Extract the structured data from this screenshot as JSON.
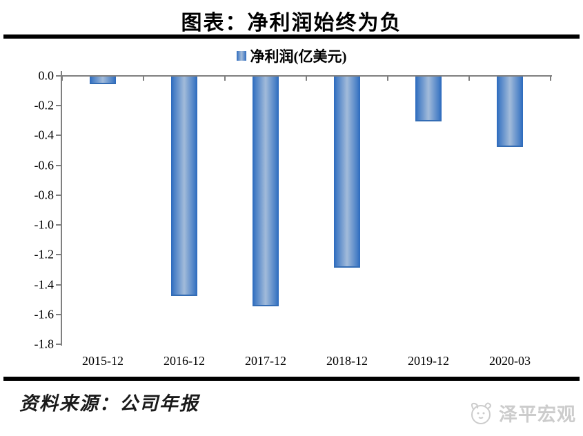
{
  "title": "图表：净利润始终为负",
  "legend": {
    "label": "净利润(亿美元)"
  },
  "chart_data": {
    "type": "bar",
    "title": "图表：净利润始终为负",
    "series_name": "净利润(亿美元)",
    "categories": [
      "2015-12",
      "2016-12",
      "2017-12",
      "2018-12",
      "2019-12",
      "2020-03"
    ],
    "values": [
      -0.05,
      -1.47,
      -1.54,
      -1.28,
      -0.3,
      -0.47
    ],
    "ylim": [
      -1.8,
      0.0
    ],
    "ytick_step": 0.2,
    "yticks": [
      "0.0",
      "-0.2",
      "-0.4",
      "-0.6",
      "-0.8",
      "-1.0",
      "-1.2",
      "-1.4",
      "-1.6",
      "-1.8"
    ],
    "xlabel": "",
    "ylabel": "",
    "grid": false,
    "legend_position": "top"
  },
  "footer": {
    "source": "资料来源：公司年报"
  },
  "watermark": {
    "text": "泽平宏观"
  },
  "colors": {
    "bar_edge": "#2b69bd",
    "bar_center": "#a2bbda",
    "axis": "#7f7f7f",
    "rule": "#000000",
    "watermark": "#cccccc"
  }
}
